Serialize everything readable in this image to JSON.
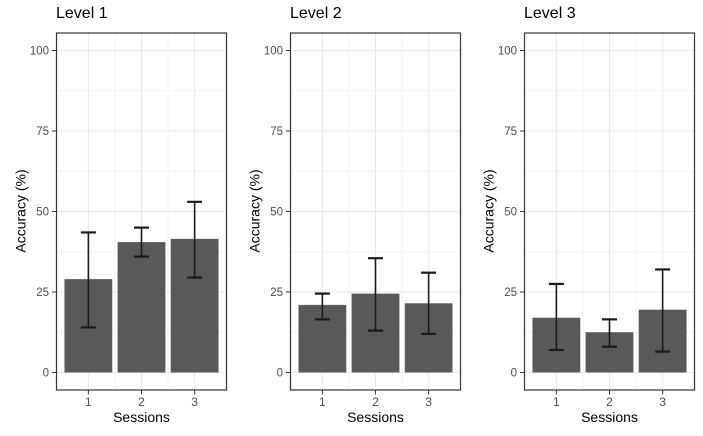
{
  "chart_data": {
    "type": "bar",
    "facets": [
      {
        "title": "Level 1",
        "bars": [
          {
            "session": "1",
            "value": 29,
            "err_low": 14,
            "err_high": 43.5
          },
          {
            "session": "2",
            "value": 40.5,
            "err_low": 36,
            "err_high": 45
          },
          {
            "session": "3",
            "value": 41.5,
            "err_low": 29.5,
            "err_high": 53
          }
        ]
      },
      {
        "title": "Level 2",
        "bars": [
          {
            "session": "1",
            "value": 21,
            "err_low": 16.5,
            "err_high": 24.5
          },
          {
            "session": "2",
            "value": 24.5,
            "err_low": 13,
            "err_high": 35.5
          },
          {
            "session": "3",
            "value": 21.5,
            "err_low": 12,
            "err_high": 31
          }
        ]
      },
      {
        "title": "Level 3",
        "bars": [
          {
            "session": "1",
            "value": 17,
            "err_low": 7,
            "err_high": 27.5
          },
          {
            "session": "2",
            "value": 12.5,
            "err_low": 8,
            "err_high": 16.5
          },
          {
            "session": "3",
            "value": 19.5,
            "err_low": 6.5,
            "err_high": 32
          }
        ]
      }
    ],
    "categories": [
      "1",
      "2",
      "3"
    ],
    "xlabel": "Sessions",
    "ylabel": "Accuracy (%)",
    "ylim": [
      0,
      100
    ],
    "yticks": [
      0,
      25,
      50,
      75,
      100
    ],
    "yticks_minor": [
      12.5,
      37.5,
      62.5,
      87.5
    ],
    "grid": true,
    "legend_position": "none",
    "error_bars": true,
    "colors": {
      "bar_fill": "#595959",
      "error_bar": "#1a1a1a",
      "panel_border": "#333333",
      "panel_background": "#ffffff",
      "grid_major": "#e9e9e9",
      "grid_minor": "#f4f4f4",
      "tick_mark": "#333333",
      "tick_label": "#4d4d4d",
      "axis_title": "#000000",
      "facet_title": "#000000",
      "background": "#ffffff"
    }
  }
}
